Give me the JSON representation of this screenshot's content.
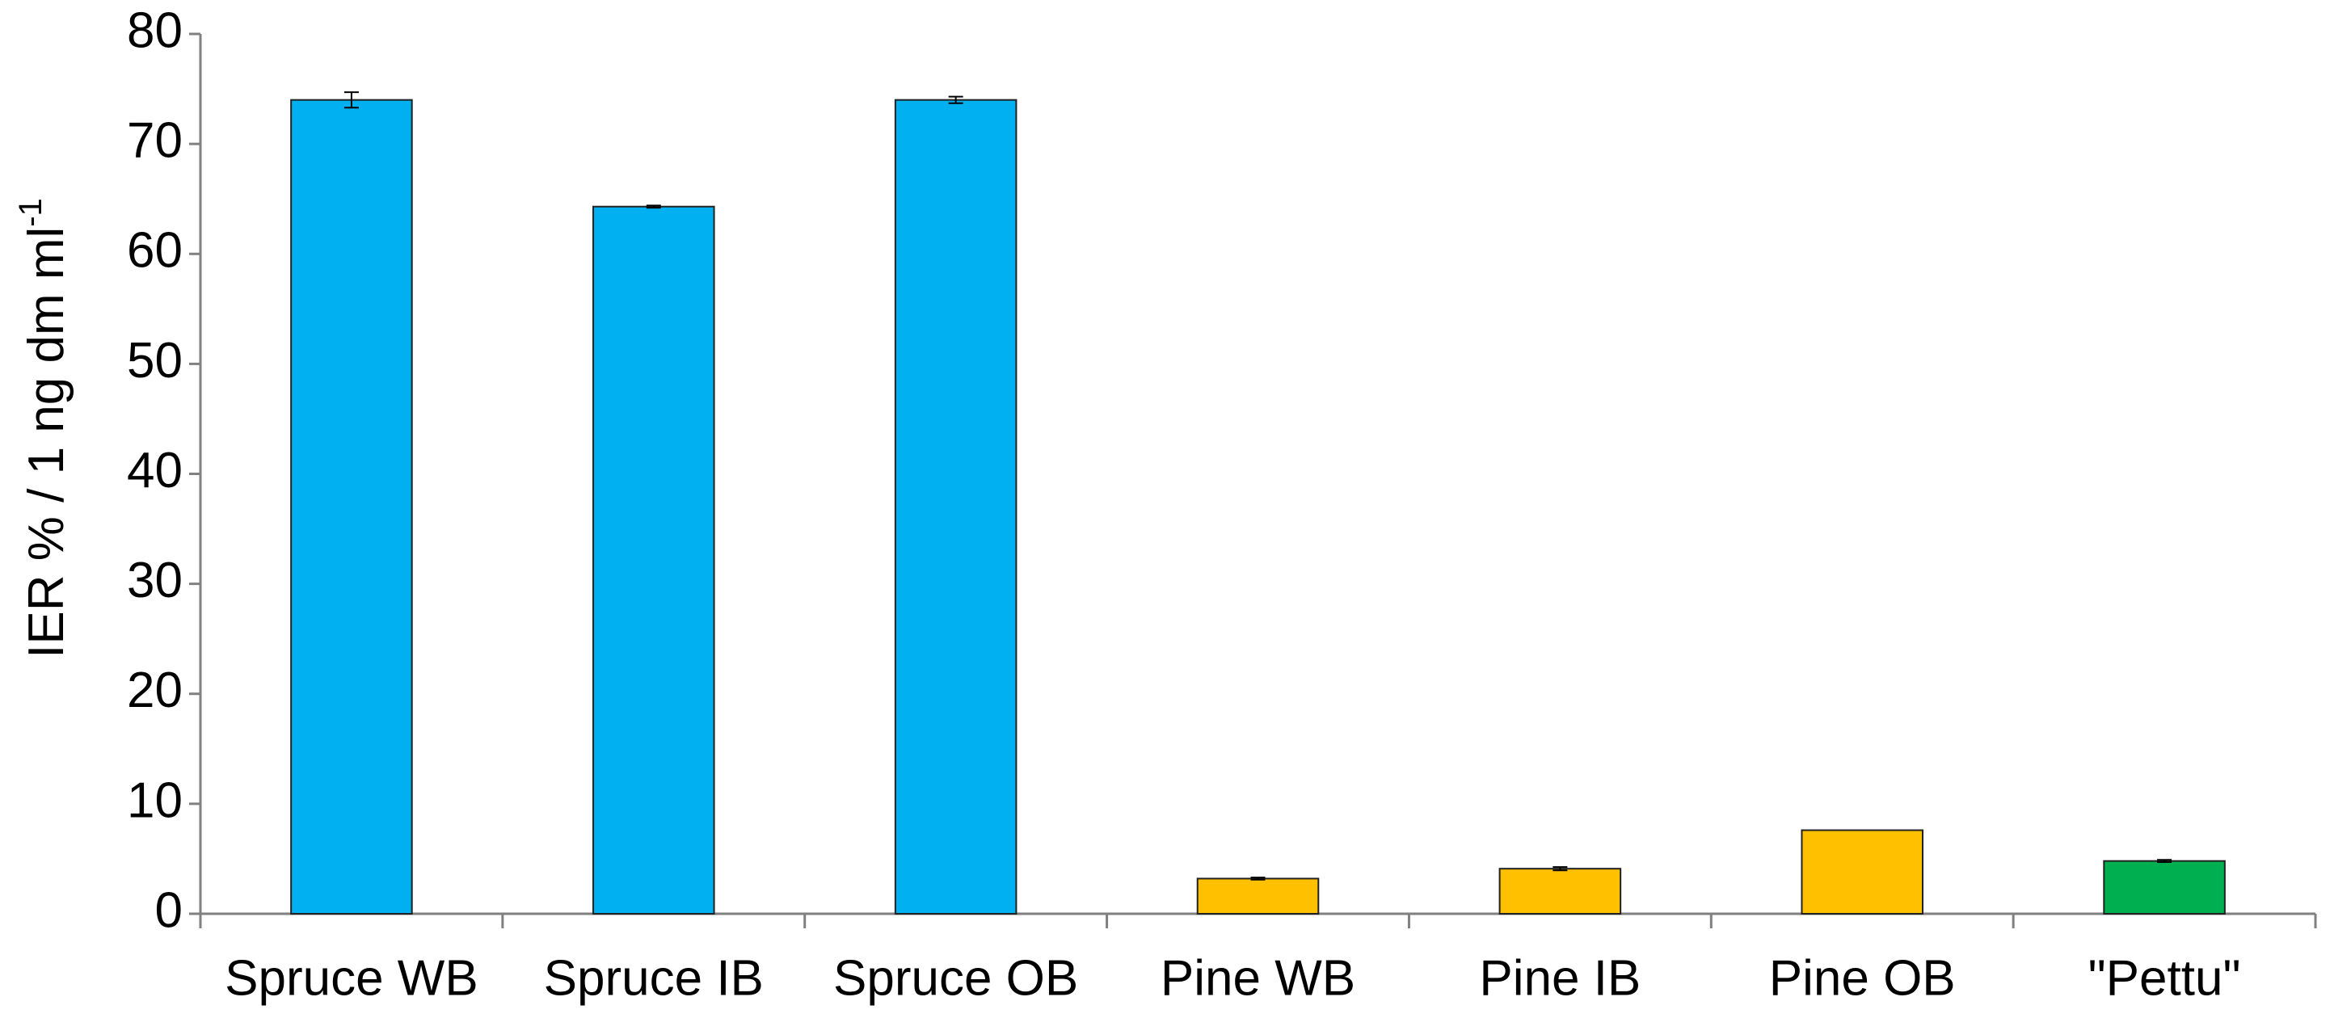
{
  "chart_data": {
    "type": "bar",
    "ylabel": "IER % / 1 ng dm ml",
    "ylabel_superscript": "-1",
    "categories": [
      "Spruce WB",
      "Spruce IB",
      "Spruce OB",
      "Pine WB",
      "Pine IB",
      "Pine OB",
      "\"Pettu\""
    ],
    "values": [
      74,
      64.3,
      74,
      3.2,
      4.1,
      7.6,
      4.8
    ],
    "errors": [
      0.7,
      0.1,
      0.3,
      0.1,
      0.15,
      null,
      0.1
    ],
    "colors": [
      "#00b0f0",
      "#00b0f0",
      "#00b0f0",
      "#ffc000",
      "#ffc000",
      "#ffc000",
      "#00b050"
    ],
    "ylim": [
      0,
      80
    ],
    "yticks": [
      0,
      10,
      20,
      30,
      40,
      50,
      60,
      70,
      80
    ],
    "grid": false
  }
}
